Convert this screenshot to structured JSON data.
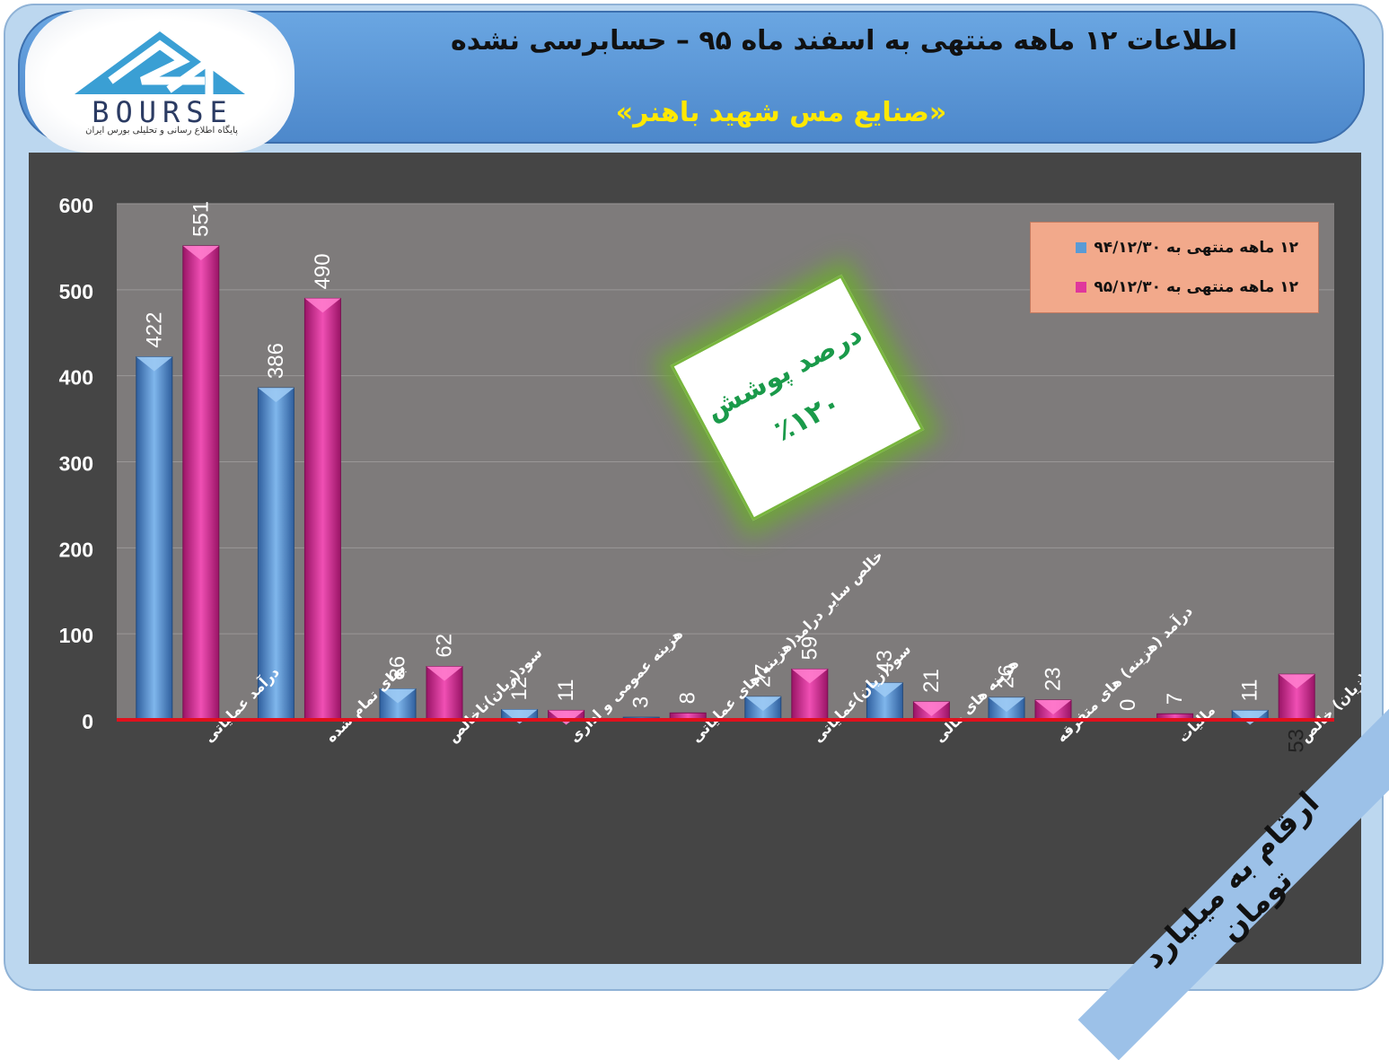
{
  "header": {
    "title": "اطلاعات ۱۲ ماهه منتهی به اسفند ماه ۹۵ – حسابرسی نشده",
    "company": "«صنایع مس شهید باهنر»"
  },
  "logo": {
    "word": "BOURSE",
    "tagline": "پایگاه اطلاع رسانی و تحلیلی بورس ایران"
  },
  "coverage": {
    "label": "درصد پوشش",
    "value": "٪۱۲۰"
  },
  "units_note": "ارقام به میلیارد تومان",
  "colors": {
    "series1": "#5b9bd5",
    "series2": "#e0379c",
    "zero_line": "#e0101c",
    "plot_bg": "#7e7b7b"
  },
  "chart_data": {
    "type": "bar",
    "categories": [
      "درآمد عملیاتی",
      "بهای تمام شده",
      "سود(زیان)ناخالص",
      "هزینه عمومی و اداری",
      "خالص سایر درامد(هزینه)های عملیاتی",
      "سود(زیان)عملیاتی",
      "هزینه های مالی",
      "درآمد (هزینه) های متفرقه",
      "مالیات",
      "سود(زیان) خالص"
    ],
    "series": [
      {
        "name": "۱۲ ماهه منتهی به ۹۴/۱۲/۳۰",
        "values": [
          422,
          386,
          36,
          12,
          3,
          27,
          43,
          26,
          0,
          11
        ]
      },
      {
        "name": "۱۲ ماهه منتهی به ۹۵/۱۲/۳۰",
        "values": [
          551,
          490,
          62,
          11,
          8,
          59,
          21,
          23,
          7,
          53
        ]
      }
    ],
    "ylim": [
      0,
      600
    ],
    "yticks": [
      0,
      100,
      200,
      300,
      400,
      500,
      600
    ],
    "grid": true,
    "legend": "top-right"
  }
}
